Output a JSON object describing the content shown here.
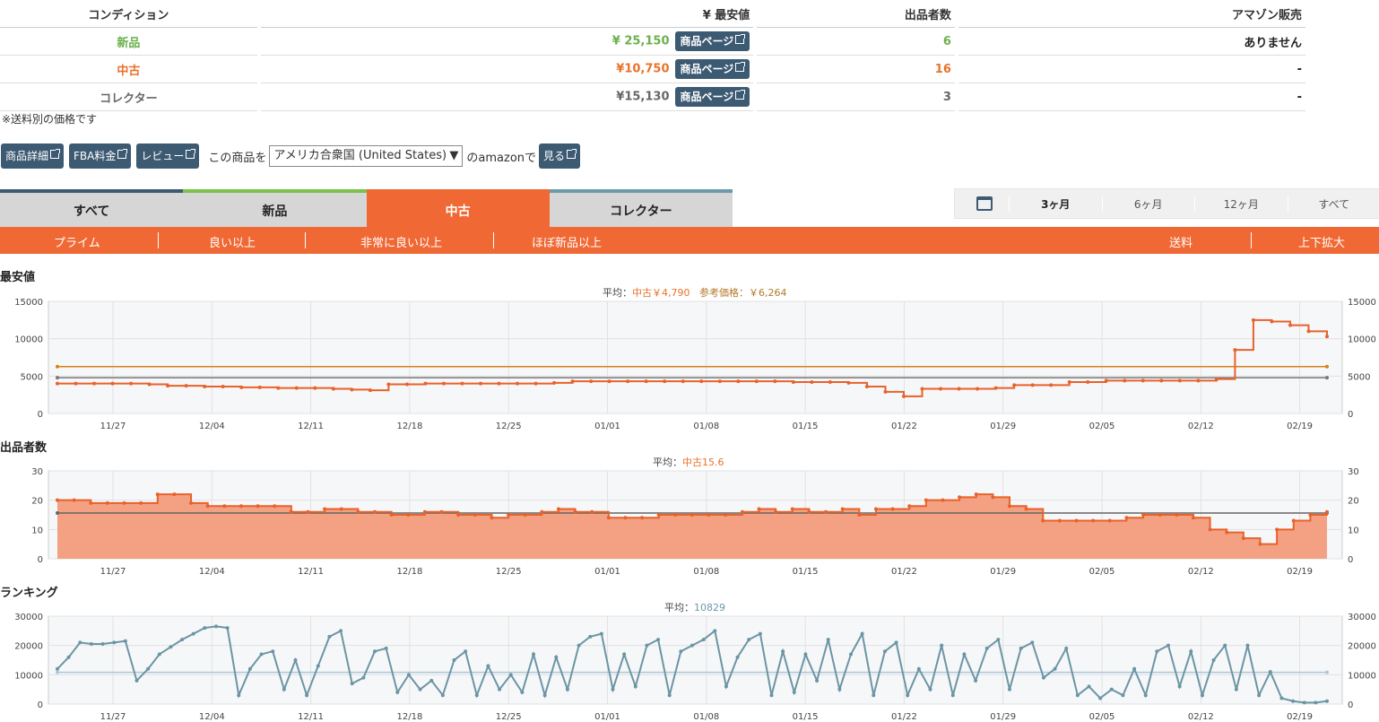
{
  "table": {
    "headers": [
      "コンディション",
      "¥ 最安値",
      "出品者数",
      "アマゾン販売"
    ],
    "button_label": "商品ページ",
    "rows": [
      {
        "condition": "新品",
        "price": "¥ 25,150",
        "count": "6",
        "amazon": "ありません",
        "color": "#6ab04c"
      },
      {
        "condition": "中古",
        "price": "¥10,750",
        "count": "16",
        "amazon": "-",
        "color": "#e8722a"
      },
      {
        "condition": "コレクター",
        "price": "¥15,130",
        "count": "3",
        "amazon": "-",
        "color": "#666666"
      }
    ],
    "note": "※送料別の価格です"
  },
  "actions": {
    "detail": "商品詳細",
    "fba": "FBA料金",
    "review": "レビュー",
    "prefix": "この商品を",
    "country": "アメリカ合衆国 (United States)",
    "suffix": "のamazonで",
    "view": "見る"
  },
  "tabs": [
    {
      "label": "すべて",
      "color": "#3d5a73"
    },
    {
      "label": "新品",
      "color": "#7cc24a"
    },
    {
      "label": "中古",
      "color": "#f06934"
    },
    {
      "label": "コレクター",
      "color": "#6b9aa8"
    }
  ],
  "periods": [
    "3ヶ月",
    "6ヶ月",
    "12ヶ月",
    "すべて"
  ],
  "filters": {
    "left": [
      "プライム",
      "良い以上",
      "非常に良い以上",
      "ほぼ新品以上"
    ],
    "right": [
      "送料",
      "上下拡大"
    ]
  },
  "x_labels": [
    "11/27",
    "12/04",
    "12/11",
    "12/18",
    "12/25",
    "01/01",
    "01/08",
    "01/15",
    "01/22",
    "01/29",
    "02/05",
    "02/12",
    "02/19"
  ],
  "chart_data": [
    {
      "type": "line",
      "title": "最安値",
      "avg_label": "平均：",
      "avg_series": "中古￥4,790",
      "ref_label": "参考価格：￥6,264",
      "yticks": [
        0,
        5000,
        10000,
        15000
      ],
      "ylim": [
        0,
        15000
      ],
      "reference": 6264,
      "average": 4790,
      "series": [
        {
          "values": [
            4000,
            4000,
            4000,
            4000,
            4000,
            3900,
            3700,
            3700,
            3600,
            3600,
            3500,
            3500,
            3400,
            3400,
            3400,
            3300,
            3200,
            3100,
            3900,
            3900,
            4000,
            4000,
            4000,
            4000,
            4000,
            4000,
            4000,
            4100,
            4300,
            4300,
            4300,
            4300,
            4300,
            4300,
            4300,
            4300,
            4300,
            4300,
            4300,
            4300,
            4200,
            4200,
            4200,
            4100,
            3600,
            2900,
            2300,
            3300,
            3300,
            3300,
            3300,
            3400,
            3800,
            3800,
            3800,
            4200,
            4200,
            4400,
            4400,
            4400,
            4400,
            4400,
            4400,
            4600,
            8500,
            12500,
            12300,
            11800,
            11000,
            10300
          ]
        }
      ]
    },
    {
      "type": "area",
      "title": "出品者数",
      "avg_label": "平均：",
      "avg_series": "中古15.6",
      "yticks": [
        0,
        10,
        20,
        30
      ],
      "ylim": [
        0,
        30
      ],
      "average": 15.6,
      "series": [
        {
          "values": [
            20,
            20,
            19,
            19,
            19,
            19,
            22,
            22,
            19,
            18,
            18,
            18,
            18,
            18,
            16,
            16,
            17,
            17,
            16,
            16,
            15,
            15,
            16,
            16,
            15,
            15,
            14,
            15,
            15,
            16,
            17,
            16,
            16,
            14,
            14,
            14,
            15,
            15,
            15,
            15,
            15,
            16,
            17,
            16,
            17,
            16,
            16,
            17,
            15,
            17,
            17,
            18,
            20,
            20,
            21,
            22,
            21,
            18,
            17,
            13,
            13,
            13,
            13,
            13,
            14,
            15,
            15,
            15,
            14,
            10,
            9,
            7,
            5,
            10,
            13,
            15,
            16
          ]
        }
      ]
    },
    {
      "type": "line",
      "title": "ランキング",
      "avg_label": "平均：",
      "avg_series": "10829",
      "yticks": [
        0,
        10000,
        20000,
        30000
      ],
      "ylim": [
        0,
        30000
      ],
      "average": 10829,
      "series": [
        {
          "values": [
            12000,
            16000,
            21000,
            20500,
            20500,
            21000,
            21500,
            8000,
            12000,
            17000,
            19500,
            22000,
            24000,
            26000,
            26500,
            26000,
            3000,
            12000,
            17000,
            18000,
            5000,
            15000,
            3000,
            13000,
            23000,
            25000,
            7000,
            9000,
            18000,
            19000,
            4000,
            10000,
            5000,
            8000,
            3000,
            15000,
            18000,
            3000,
            13000,
            5000,
            10000,
            4000,
            17000,
            3000,
            16000,
            5000,
            20000,
            23000,
            24000,
            5000,
            17000,
            6000,
            20000,
            22000,
            3000,
            18000,
            20000,
            22000,
            25000,
            6000,
            16000,
            22000,
            24000,
            3000,
            18000,
            4000,
            17000,
            8000,
            22000,
            5000,
            17000,
            24000,
            3000,
            18000,
            21000,
            3000,
            12000,
            5000,
            20000,
            3000,
            17000,
            8000,
            19000,
            22000,
            5000,
            19000,
            21000,
            9000,
            12000,
            19000,
            3000,
            6000,
            2000,
            5000,
            3000,
            12000,
            3000,
            18000,
            20000,
            6000,
            18000,
            3000,
            15000,
            20000,
            5000,
            20000,
            3000,
            11000,
            2000,
            1000,
            500,
            500,
            1000
          ]
        }
      ]
    }
  ]
}
